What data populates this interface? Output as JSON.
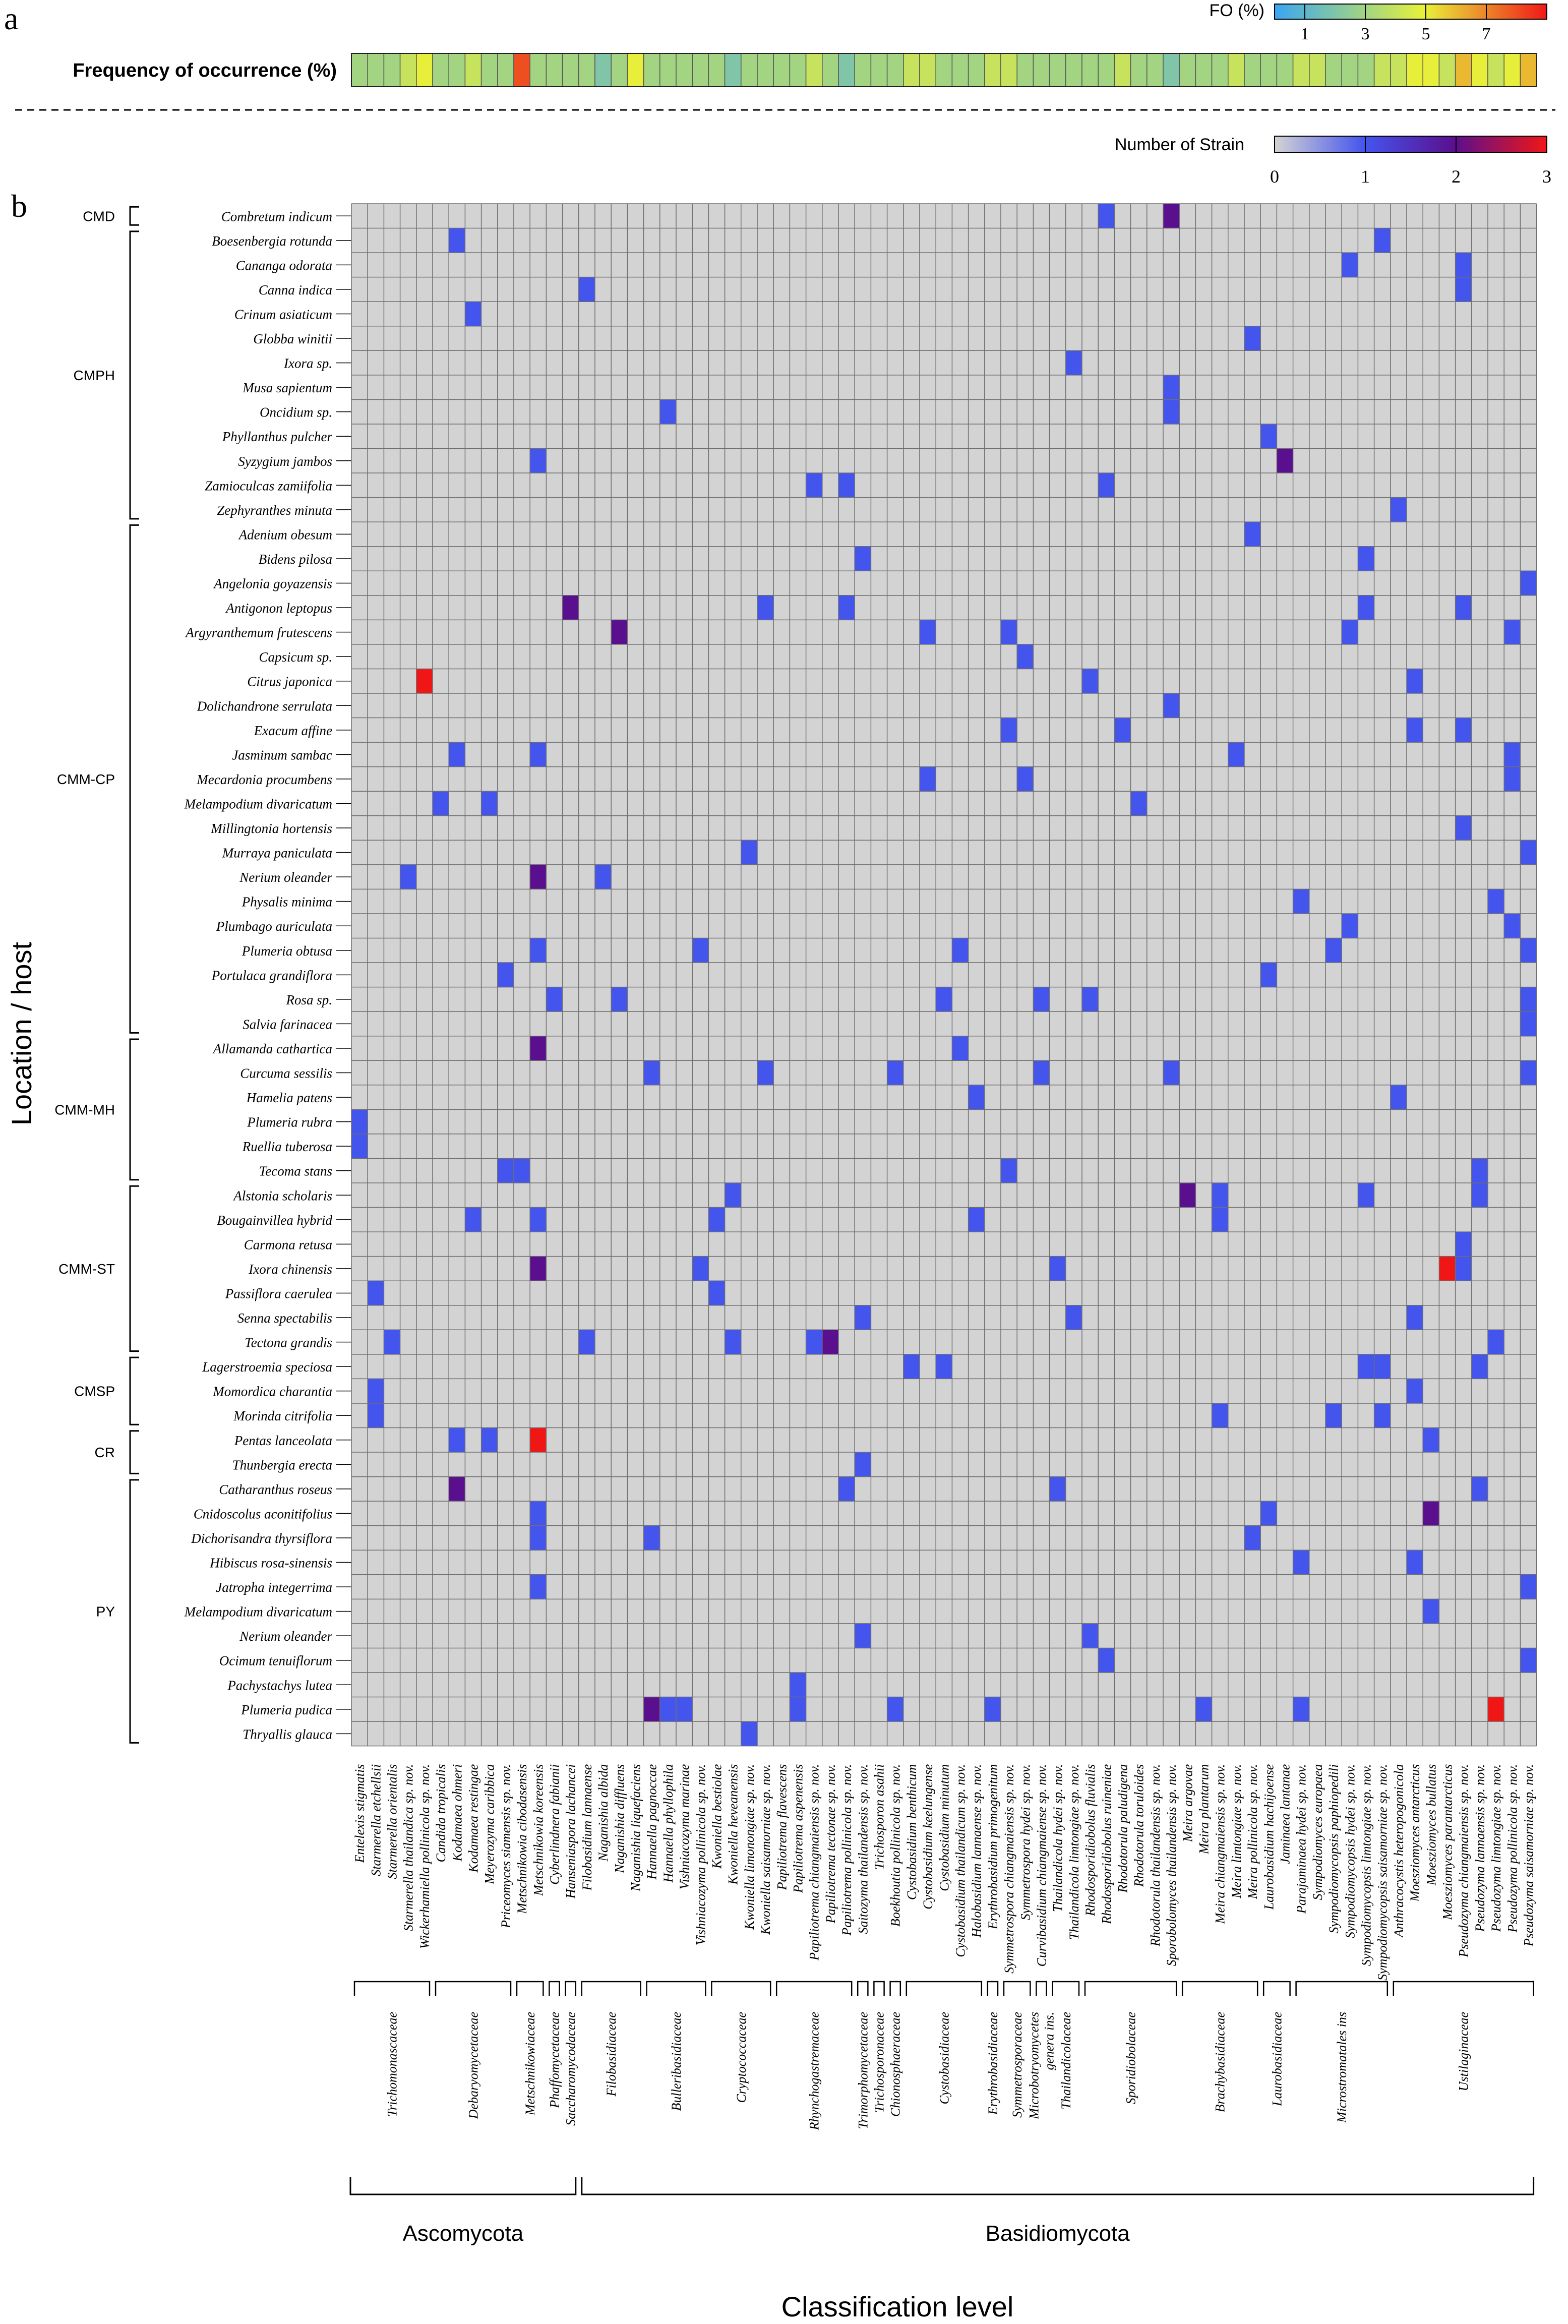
{
  "panel_labels": {
    "a": "a",
    "b": "b"
  },
  "fo_bar": {
    "label": "Frequency of occurrence (%)",
    "legend_title": "FO (%)",
    "legend_ticks": [
      "1",
      "3",
      "5",
      "7"
    ],
    "legend_range": [
      0,
      9
    ],
    "colors": {
      "low": "#3aa6f2",
      "mid": "#e8f23a",
      "high": "#f01818"
    }
  },
  "strain_legend": {
    "title": "Number of Strain",
    "ticks": [
      "0",
      "1",
      "2",
      "3"
    ],
    "colors": {
      "0": "#d3d3d3",
      "1": "#4455ee",
      "2": "#5a0f8e",
      "3": "#f01616"
    }
  },
  "axis": {
    "y_label": "Location / host",
    "x_label": "Classification level"
  },
  "chart_data": {
    "type": "heatmap",
    "title": "Number of Strain",
    "xlabel": "Classification level",
    "ylabel": "Location / host",
    "value_range": [
      0,
      3
    ],
    "species": [
      "Entelexis stigmatis",
      "Starmerella etchellsii",
      "Starmerella orientalis",
      "Starmerella thailandica sp. nov.",
      "Wickerhamiella pollinicola sp. nov.",
      "Candida tropicalis",
      "Kodamaea ohmeri",
      "Kodamaea restingae",
      "Meyerozyma caribbica",
      "Priceomyces siamensis sp. nov.",
      "Metschnikowia cibodasensis",
      "Metschnikowia koreensis",
      "Cyberlindnera fabianii",
      "Hanseniaspora lachancei",
      "Filobasidium lannaense",
      "Naganishia albida",
      "Naganishia diffluens",
      "Naganishia liquefaciens",
      "Hannaella pagnoccae",
      "Hannaella phyllophila",
      "Vishniacozyma marinae",
      "Vishniacozyma pollinicola sp. nov.",
      "Kwoniella bestiolae",
      "Kwoniella heveanensis",
      "Kwoniella limonongiae sp. nov.",
      "Kwoniella saisamorniae sp. nov.",
      "Papiliotrema flavescens",
      "Papiliotrema aspenensis",
      "Papiliotrema chiangmaiensis sp. nov.",
      "Papiliotrema tectonae sp. nov.",
      "Papiliotrema pollinicola sp. nov.",
      "Saitozyma thailandensis sp. nov.",
      "Trichosporon asahii",
      "Boekhoutia pollinicola sp. nov.",
      "Cystobasidium benthicum",
      "Cystobasidium keelungense",
      "Cystobasidium minutum",
      "Cystobasidium thailandicum sp. nov.",
      "Halobasidium lannaense sp. nov.",
      "Erythrobasidium primogenitum",
      "Symmetrospora chiangmaiensis sp. nov.",
      "Symmetrospora hydei sp. nov.",
      "Curvibasidium chiangmaiense sp. nov.",
      "Thailandicola hydei sp. nov.",
      "Thailandicola limtongiae sp. nov.",
      "Rhodosporidiobolus fluvialis",
      "Rhodosporidiobolus ruineniae",
      "Rhodotorula paludigena",
      "Rhodotorula toruloides",
      "Rhodotorula thailandensis sp. nov.",
      "Sporobolomyces thailandensis sp. nov.",
      "Meira argovae",
      "Meira plantarum",
      "Meira chiangmaiensis sp. nov.",
      "Meira limtongiae sp. nov.",
      "Meira pollinicola sp. nov.",
      "Laurobasidium hachijoense",
      "Jaminaea lantanae",
      "Parajaminaea hydei sp. nov.",
      "Sympodiomyces europaea",
      "Sympodiomycopsis paphiopedili",
      "Sympodiomycopsis hydei sp. nov.",
      "Sympodiomycopsis limtongiae sp. nov.",
      "Sympodiomycopsis saisamorniae sp. nov.",
      "Anthracocystis heteropogonicola",
      "Moesziomyces antarcticus",
      "Moesziomyces bullatus",
      "Moesziomyces parantarcticus",
      "Pseudozyma chiangmaiensis sp. nov.",
      "Pseudozyma lannaensis sp. nov.",
      "Pseudozyma limtongiae sp. nov.",
      "Pseudozyma pollinicola sp. nov.",
      "Pseudozyma saisamorniae sp. nov."
    ],
    "hosts": [
      "Combretum indicum",
      "Boesenbergia rotunda",
      "Cananga odorata",
      "Canna indica",
      "Crinum asiaticum",
      "Globba winitii",
      "Ixora sp.",
      "Musa sapientum",
      "Oncidium sp.",
      "Phyllanthus pulcher",
      "Syzygium jambos",
      "Zamioculcas zamiifolia",
      "Zephyranthes minuta",
      "Adenium obesum",
      "Bidens pilosa",
      "Angelonia goyazensis",
      "Antigonon leptopus",
      "Argyranthemum frutescens",
      "Capsicum sp.",
      "Citrus japonica",
      "Dolichandrone serrulata",
      "Exacum affine",
      "Jasminum sambac",
      "Mecardonia procumbens",
      "Melampodium divaricatum",
      "Millingtonia hortensis",
      "Murraya paniculata",
      "Nerium oleander",
      "Physalis minima",
      "Plumbago auriculata",
      "Plumeria obtusa",
      "Portulaca grandiflora",
      "Rosa sp.",
      "Salvia farinacea",
      "Allamanda cathartica",
      "Curcuma sessilis",
      "Hamelia patens",
      "Plumeria rubra",
      "Ruellia tuberosa",
      "Tecoma stans",
      "Alstonia scholaris",
      "Bougainvillea hybrid",
      "Carmona retusa",
      "Ixora chinensis",
      "Passiflora caerulea",
      "Senna spectabilis",
      "Tectona grandis",
      "Lagerstroemia speciosa",
      "Momordica charantia",
      "Morinda citrifolia",
      "Pentas lanceolata",
      "Thunbergia erecta",
      "Catharanthus roseus",
      "Cnidoscolus aconitifolius",
      "Dichorisandra thyrsiflora",
      "Hibiscus rosa-sinensis",
      "Jatropha integerrima",
      "Melampodium divaricatum",
      "Nerium oleander",
      "Ocimum tenuiflorum",
      "Pachystachys lutea",
      "Plumeria pudica",
      "Thryallis glauca"
    ],
    "locations": [
      {
        "name": "CMD",
        "start": 0,
        "end": 0
      },
      {
        "name": "CMPH",
        "start": 1,
        "end": 12
      },
      {
        "name": "CMM-CP",
        "start": 13,
        "end": 33
      },
      {
        "name": "CMM-MH",
        "start": 34,
        "end": 39
      },
      {
        "name": "CMM-ST",
        "start": 40,
        "end": 46
      },
      {
        "name": "CMSP",
        "start": 47,
        "end": 49
      },
      {
        "name": "CR",
        "start": 50,
        "end": 51
      },
      {
        "name": "PY",
        "start": 52,
        "end": 62
      }
    ],
    "families": [
      {
        "name": "Trichomonascaceae",
        "start": 0,
        "end": 4
      },
      {
        "name": "Debaryomycetaceae",
        "start": 5,
        "end": 9
      },
      {
        "name": "Metschnikowiaceae",
        "start": 10,
        "end": 11
      },
      {
        "name": "Phaffomycetaceae",
        "start": 12,
        "end": 12
      },
      {
        "name": "Saccharomycodaceae",
        "start": 13,
        "end": 13
      },
      {
        "name": "Filobasidiaceae",
        "start": 14,
        "end": 17
      },
      {
        "name": "Bulleribasidiaceae",
        "start": 18,
        "end": 21
      },
      {
        "name": "Cryptococcaceae",
        "start": 22,
        "end": 25
      },
      {
        "name": "Rhynchogastremaceae",
        "start": 26,
        "end": 30
      },
      {
        "name": "Trimorphomycetaceae",
        "start": 31,
        "end": 31
      },
      {
        "name": "Trichosporonaceae",
        "start": 32,
        "end": 32
      },
      {
        "name": "Chionosphaeraceae",
        "start": 33,
        "end": 33
      },
      {
        "name": "Cystobasidiaceae",
        "start": 34,
        "end": 38
      },
      {
        "name": "Erythrobasidiaceae",
        "start": 39,
        "end": 39
      },
      {
        "name": "Symmetrosporaceae",
        "start": 40,
        "end": 41
      },
      {
        "name": "Microbotryomycetes genera ins.",
        "start": 42,
        "end": 42
      },
      {
        "name": "Thailandicolaceae",
        "start": 43,
        "end": 44
      },
      {
        "name": "Sporidiobolaceae",
        "start": 45,
        "end": 50
      },
      {
        "name": "Brachybasidiaceae",
        "start": 51,
        "end": 55
      },
      {
        "name": "Laurobasidiaceae",
        "start": 56,
        "end": 57
      },
      {
        "name": "Microstromatales ins",
        "start": 58,
        "end": 63
      },
      {
        "name": "Ustilaginaceae",
        "start": 64,
        "end": 72
      }
    ],
    "phyla": [
      {
        "name": "Ascomycota",
        "start": 0,
        "end": 13
      },
      {
        "name": "Basidiomycota",
        "start": 14,
        "end": 72
      }
    ],
    "frequency_of_occurrence": [
      3,
      3,
      3,
      4,
      5,
      3,
      3,
      4,
      3,
      3,
      8,
      3,
      3,
      3,
      3,
      2,
      3,
      5,
      3,
      3,
      3,
      3,
      3,
      2,
      3,
      3,
      3,
      3,
      4,
      3,
      2,
      3,
      3,
      3,
      4,
      4,
      3,
      3,
      3,
      4,
      4,
      3,
      3,
      3,
      3,
      3,
      3,
      4,
      3,
      3,
      2,
      3,
      3,
      3,
      4,
      3,
      3,
      3,
      4,
      4,
      3,
      3,
      3,
      4,
      4,
      5,
      5,
      4,
      6,
      5,
      4,
      5,
      6
    ],
    "cells": [
      [
        0,
        46,
        1
      ],
      [
        0,
        50,
        2
      ],
      [
        1,
        6,
        1
      ],
      [
        1,
        63,
        1
      ],
      [
        2,
        61,
        1
      ],
      [
        2,
        68,
        1
      ],
      [
        3,
        14,
        1
      ],
      [
        3,
        68,
        1
      ],
      [
        4,
        7,
        1
      ],
      [
        5,
        55,
        1
      ],
      [
        6,
        44,
        1
      ],
      [
        7,
        50,
        1
      ],
      [
        8,
        19,
        1
      ],
      [
        8,
        50,
        1
      ],
      [
        9,
        56,
        1
      ],
      [
        10,
        11,
        1
      ],
      [
        10,
        57,
        2
      ],
      [
        11,
        28,
        1
      ],
      [
        11,
        30,
        1
      ],
      [
        11,
        46,
        1
      ],
      [
        12,
        64,
        1
      ],
      [
        13,
        55,
        1
      ],
      [
        14,
        31,
        1
      ],
      [
        14,
        62,
        1
      ],
      [
        15,
        72,
        1
      ],
      [
        16,
        13,
        2
      ],
      [
        16,
        25,
        1
      ],
      [
        16,
        30,
        1
      ],
      [
        16,
        62,
        1
      ],
      [
        16,
        68,
        1
      ],
      [
        17,
        16,
        2
      ],
      [
        17,
        35,
        1
      ],
      [
        17,
        40,
        1
      ],
      [
        17,
        61,
        1
      ],
      [
        17,
        71,
        1
      ],
      [
        18,
        41,
        1
      ],
      [
        19,
        4,
        3
      ],
      [
        19,
        45,
        1
      ],
      [
        19,
        65,
        1
      ],
      [
        20,
        50,
        1
      ],
      [
        21,
        40,
        1
      ],
      [
        21,
        47,
        1
      ],
      [
        21,
        65,
        1
      ],
      [
        21,
        68,
        1
      ],
      [
        22,
        6,
        1
      ],
      [
        22,
        11,
        1
      ],
      [
        22,
        54,
        1
      ],
      [
        22,
        71,
        1
      ],
      [
        23,
        35,
        1
      ],
      [
        23,
        41,
        1
      ],
      [
        23,
        71,
        1
      ],
      [
        24,
        5,
        1
      ],
      [
        24,
        8,
        1
      ],
      [
        24,
        48,
        1
      ],
      [
        25,
        68,
        1
      ],
      [
        26,
        24,
        1
      ],
      [
        26,
        72,
        1
      ],
      [
        27,
        3,
        1
      ],
      [
        27,
        11,
        2
      ],
      [
        27,
        15,
        1
      ],
      [
        28,
        58,
        1
      ],
      [
        28,
        70,
        1
      ],
      [
        29,
        61,
        1
      ],
      [
        29,
        71,
        1
      ],
      [
        30,
        11,
        1
      ],
      [
        30,
        21,
        1
      ],
      [
        30,
        37,
        1
      ],
      [
        30,
        60,
        1
      ],
      [
        30,
        72,
        1
      ],
      [
        31,
        9,
        1
      ],
      [
        31,
        56,
        1
      ],
      [
        32,
        12,
        1
      ],
      [
        32,
        16,
        1
      ],
      [
        32,
        36,
        1
      ],
      [
        32,
        42,
        1
      ],
      [
        32,
        45,
        1
      ],
      [
        32,
        72,
        1
      ],
      [
        33,
        72,
        1
      ],
      [
        34,
        11,
        2
      ],
      [
        34,
        37,
        1
      ],
      [
        35,
        18,
        1
      ],
      [
        35,
        25,
        1
      ],
      [
        35,
        33,
        1
      ],
      [
        35,
        42,
        1
      ],
      [
        35,
        50,
        1
      ],
      [
        35,
        72,
        1
      ],
      [
        36,
        38,
        1
      ],
      [
        36,
        64,
        1
      ],
      [
        37,
        0,
        1
      ],
      [
        38,
        0,
        1
      ],
      [
        39,
        9,
        1
      ],
      [
        39,
        10,
        1
      ],
      [
        39,
        40,
        1
      ],
      [
        39,
        69,
        1
      ],
      [
        40,
        23,
        1
      ],
      [
        40,
        51,
        2
      ],
      [
        40,
        53,
        1
      ],
      [
        40,
        62,
        1
      ],
      [
        40,
        69,
        1
      ],
      [
        41,
        7,
        1
      ],
      [
        41,
        11,
        1
      ],
      [
        41,
        22,
        1
      ],
      [
        41,
        38,
        1
      ],
      [
        41,
        53,
        1
      ],
      [
        42,
        68,
        1
      ],
      [
        43,
        11,
        2
      ],
      [
        43,
        21,
        1
      ],
      [
        43,
        43,
        1
      ],
      [
        43,
        67,
        3
      ],
      [
        43,
        68,
        1
      ],
      [
        44,
        1,
        1
      ],
      [
        44,
        22,
        1
      ],
      [
        45,
        31,
        1
      ],
      [
        45,
        44,
        1
      ],
      [
        45,
        65,
        1
      ],
      [
        46,
        2,
        1
      ],
      [
        46,
        14,
        1
      ],
      [
        46,
        23,
        1
      ],
      [
        46,
        28,
        1
      ],
      [
        46,
        29,
        2
      ],
      [
        46,
        70,
        1
      ],
      [
        47,
        34,
        1
      ],
      [
        47,
        36,
        1
      ],
      [
        47,
        62,
        1
      ],
      [
        47,
        63,
        1
      ],
      [
        47,
        69,
        1
      ],
      [
        48,
        1,
        1
      ],
      [
        48,
        65,
        1
      ],
      [
        49,
        1,
        1
      ],
      [
        49,
        53,
        1
      ],
      [
        49,
        60,
        1
      ],
      [
        49,
        63,
        1
      ],
      [
        50,
        6,
        1
      ],
      [
        50,
        8,
        1
      ],
      [
        50,
        11,
        3
      ],
      [
        50,
        66,
        1
      ],
      [
        51,
        31,
        1
      ],
      [
        52,
        6,
        2
      ],
      [
        52,
        30,
        1
      ],
      [
        52,
        43,
        1
      ],
      [
        52,
        69,
        1
      ],
      [
        53,
        11,
        1
      ],
      [
        53,
        56,
        1
      ],
      [
        53,
        66,
        2
      ],
      [
        54,
        11,
        1
      ],
      [
        54,
        18,
        1
      ],
      [
        54,
        55,
        1
      ],
      [
        55,
        58,
        1
      ],
      [
        55,
        65,
        1
      ],
      [
        56,
        11,
        1
      ],
      [
        56,
        72,
        1
      ],
      [
        57,
        66,
        1
      ],
      [
        58,
        31,
        1
      ],
      [
        58,
        45,
        1
      ],
      [
        59,
        46,
        1
      ],
      [
        59,
        72,
        1
      ],
      [
        60,
        27,
        1
      ],
      [
        61,
        18,
        2
      ],
      [
        61,
        19,
        1
      ],
      [
        61,
        20,
        1
      ],
      [
        61,
        27,
        1
      ],
      [
        61,
        33,
        1
      ],
      [
        61,
        39,
        1
      ],
      [
        61,
        52,
        1
      ],
      [
        61,
        58,
        1
      ],
      [
        61,
        70,
        3
      ],
      [
        62,
        24,
        1
      ]
    ]
  }
}
